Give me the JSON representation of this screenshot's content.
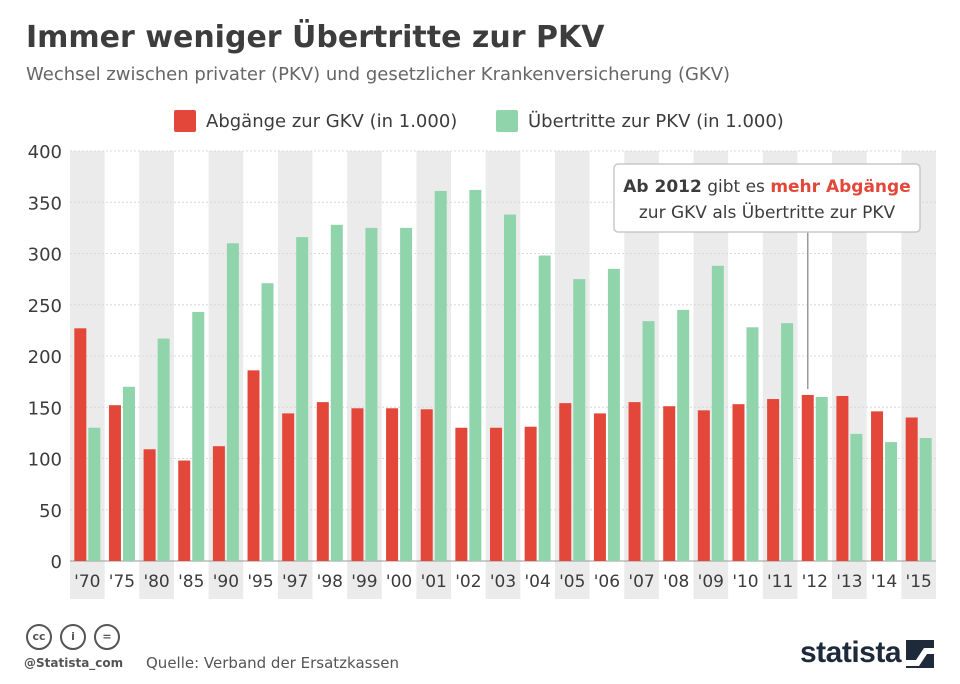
{
  "header": {
    "title": "Immer weniger Übertritte zur PKV",
    "subtitle": "Wechsel zwischen privater (PKV) und gesetzlicher Krankenversicherung (GKV)"
  },
  "colors": {
    "red": "#e2473a",
    "green": "#8fd4ab",
    "band": "#ebebeb",
    "grid": "#d8d8d8"
  },
  "chart_data": {
    "type": "bar",
    "categories": [
      "'70",
      "'75",
      "'80",
      "'85",
      "'90",
      "'95",
      "'97",
      "'98",
      "'99",
      "'00",
      "'01",
      "'02",
      "'03",
      "'04",
      "'05",
      "'06",
      "'07",
      "'08",
      "'09",
      "'10",
      "'11",
      "'12",
      "'13",
      "'14",
      "'15"
    ],
    "series": [
      {
        "name": "Abgänge zur GKV (in 1.000)",
        "color": "#e2473a",
        "values": [
          227,
          152,
          109,
          98,
          112,
          186,
          144,
          155,
          149,
          149,
          148,
          130,
          130,
          131,
          154,
          144,
          155,
          151,
          147,
          153,
          158,
          162,
          161,
          146,
          140
        ]
      },
      {
        "name": "Übertritte zur PKV (in 1.000)",
        "color": "#8fd4ab",
        "values": [
          130,
          170,
          217,
          243,
          310,
          271,
          316,
          328,
          325,
          325,
          361,
          362,
          338,
          298,
          275,
          285,
          234,
          245,
          288,
          228,
          232,
          160,
          124,
          116,
          120
        ]
      }
    ],
    "ylim": [
      0,
      400
    ],
    "yticks": [
      0,
      50,
      100,
      150,
      200,
      250,
      300,
      350,
      400
    ],
    "grid": true,
    "legend": "top-center",
    "annotation": {
      "bold": "Ab 2012",
      "mid": " gibt es ",
      "highlight": "mehr Abgänge",
      "line2": "zur GKV als Übertritte zur PKV",
      "category": "'12"
    }
  },
  "footer": {
    "cc_icons": [
      "cc-icon",
      "by-icon",
      "nd-icon"
    ],
    "cc_labels": [
      "cc",
      "i",
      "="
    ],
    "handle": "@Statista_com",
    "source": "Quelle: Verband der Ersatzkassen",
    "brand": "statista"
  }
}
